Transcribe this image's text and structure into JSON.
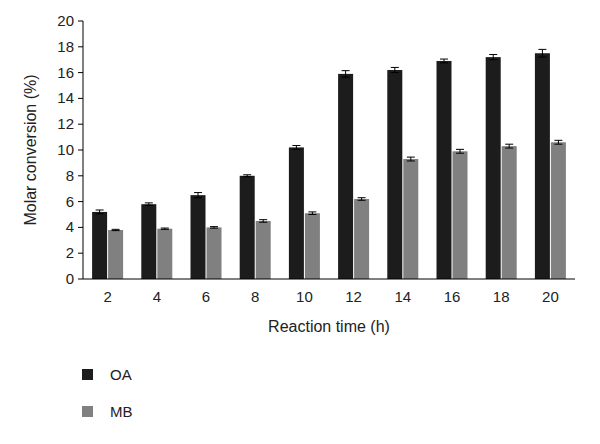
{
  "chart_data": {
    "type": "bar",
    "x_label": "Reaction time (h)",
    "y_label": "Molar conversion (%)",
    "categories": [
      "2",
      "4",
      "6",
      "8",
      "10",
      "12",
      "14",
      "16",
      "18",
      "20"
    ],
    "series": [
      {
        "name": "OA",
        "color": "#1c1c1c",
        "values": [
          5.2,
          5.8,
          6.5,
          8.0,
          10.2,
          15.9,
          16.2,
          16.9,
          17.2,
          17.5
        ],
        "errors": [
          0.15,
          0.1,
          0.2,
          0.08,
          0.15,
          0.25,
          0.2,
          0.15,
          0.2,
          0.3
        ]
      },
      {
        "name": "MB",
        "color": "#808080",
        "values": [
          3.8,
          3.9,
          4.0,
          4.5,
          5.1,
          6.2,
          9.3,
          9.9,
          10.3,
          10.6
        ],
        "errors": [
          0.05,
          0.05,
          0.06,
          0.1,
          0.1,
          0.1,
          0.15,
          0.15,
          0.15,
          0.15
        ]
      }
    ],
    "ylim": [
      0,
      20
    ],
    "yticks": [
      0,
      2,
      4,
      6,
      8,
      10,
      12,
      14,
      16,
      18,
      20
    ],
    "grid": false,
    "legend": "bottom"
  }
}
